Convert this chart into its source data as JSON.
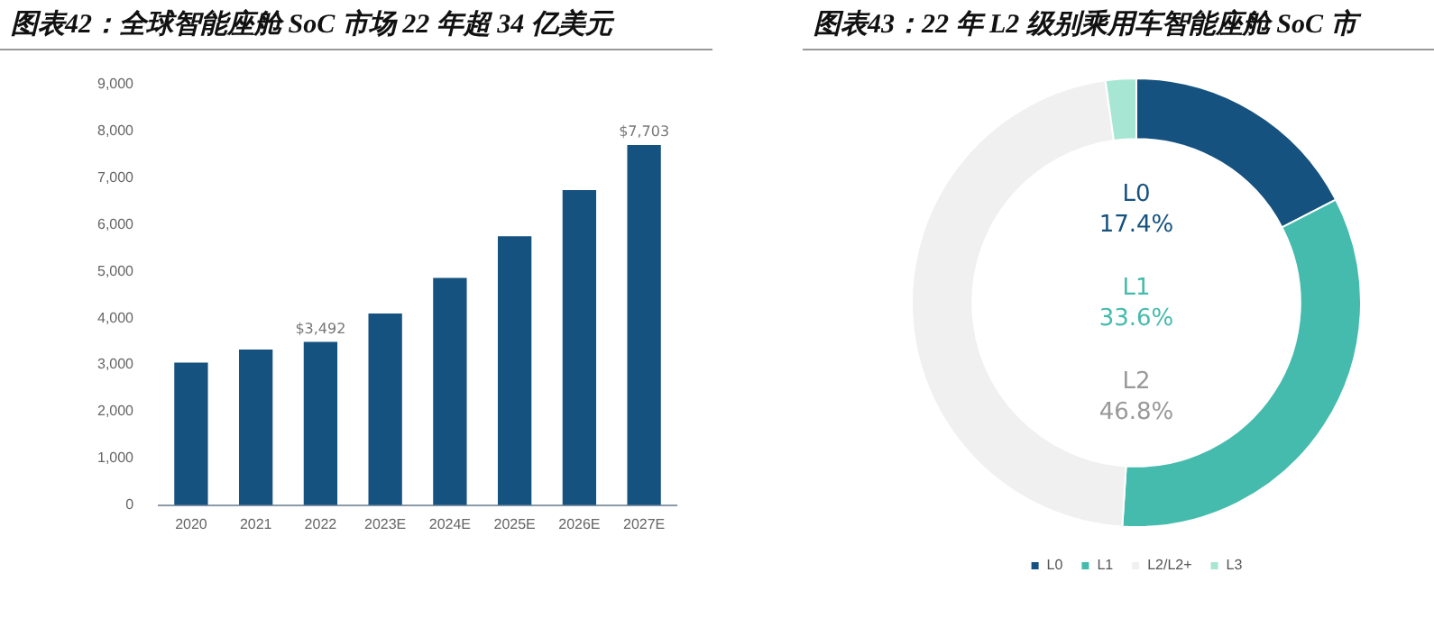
{
  "chart_data": [
    {
      "type": "bar",
      "title": "图表42：全球智能座舱 SoC 市场 22 年超 34 亿美元",
      "categories": [
        "2020",
        "2021",
        "2022",
        "2023E",
        "2024E",
        "2025E",
        "2026E",
        "2027E"
      ],
      "values": [
        3050,
        3330,
        3492,
        4100,
        4860,
        5750,
        6740,
        7703
      ],
      "value_labels": [
        null,
        null,
        "$3,492",
        null,
        null,
        null,
        null,
        "$7,703"
      ],
      "color": "#16527f",
      "ylim": [
        0,
        9000
      ],
      "yticks": [
        {
          "value": 0,
          "label": "0"
        },
        {
          "value": 1000,
          "label": "1,000"
        },
        {
          "value": 2000,
          "label": "2,000"
        },
        {
          "value": 3000,
          "label": "3,000"
        },
        {
          "value": 4000,
          "label": "4,000"
        },
        {
          "value": 5000,
          "label": "5,000"
        },
        {
          "value": 6000,
          "label": "6,000"
        },
        {
          "value": 7000,
          "label": "7,000"
        },
        {
          "value": 8000,
          "label": "8,000"
        },
        {
          "value": 9000,
          "label": "9,000"
        }
      ],
      "grid": false,
      "legend": false
    },
    {
      "type": "donut",
      "title": "图表43：22 年 L2 级别乘用车智能座舱 SoC 市",
      "categories": [
        "L0",
        "L1",
        "L2/L2+",
        "L3"
      ],
      "values": [
        17.4,
        33.6,
        46.8,
        2.2
      ],
      "colors": [
        "#16527f",
        "#45bbad",
        "#f0f0f0",
        "#a8e6d4"
      ],
      "annotations": [
        "L0",
        "L1",
        "L2"
      ],
      "value_labels": [
        "17.4%",
        "33.6%",
        "46.8%",
        null
      ],
      "legend": "bottom"
    }
  ]
}
